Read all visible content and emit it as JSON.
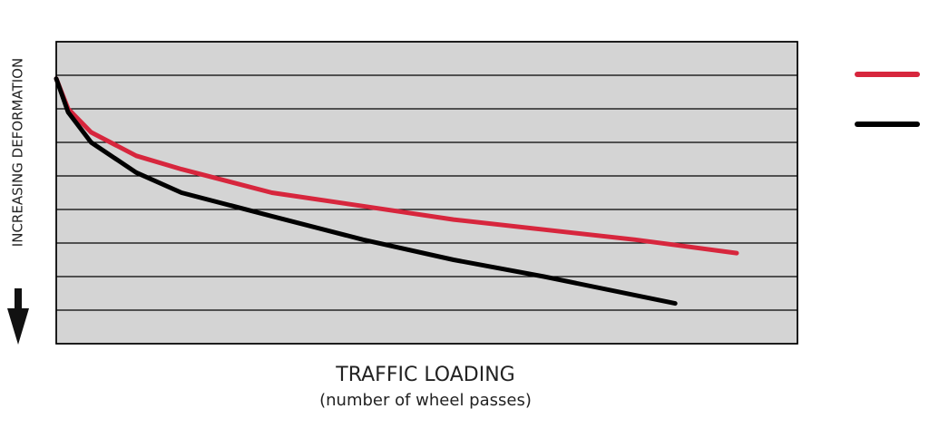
{
  "chart_data": {
    "type": "line",
    "y_label": "INCREASING DEFORMATION",
    "x_label": "TRAFFIC LOADING",
    "x_sublabel": "(number of wheel passes)",
    "xlim": [
      0,
      100
    ],
    "ylim": [
      9,
      0
    ],
    "yticks": [
      1,
      2,
      3,
      4,
      5,
      6,
      7,
      8
    ],
    "grid": true,
    "legend": "right",
    "series": [
      {
        "color": "#d7263d",
        "x": [
          0,
          1.6,
          4.7,
          10.8,
          16.9,
          29.1,
          41.4,
          53.6,
          65.8,
          78.1,
          91.8
        ],
        "values": [
          1.1,
          2.0,
          2.7,
          3.4,
          3.8,
          4.5,
          4.9,
          5.3,
          5.6,
          5.9,
          6.3
        ]
      },
      {
        "color": "#000000",
        "x": [
          0,
          1.6,
          4.7,
          10.8,
          16.9,
          29.1,
          41.4,
          53.6,
          65.8,
          83.5
        ],
        "values": [
          1.1,
          2.1,
          3.0,
          3.9,
          4.5,
          5.2,
          5.9,
          6.5,
          7.0,
          7.8
        ]
      }
    ]
  }
}
